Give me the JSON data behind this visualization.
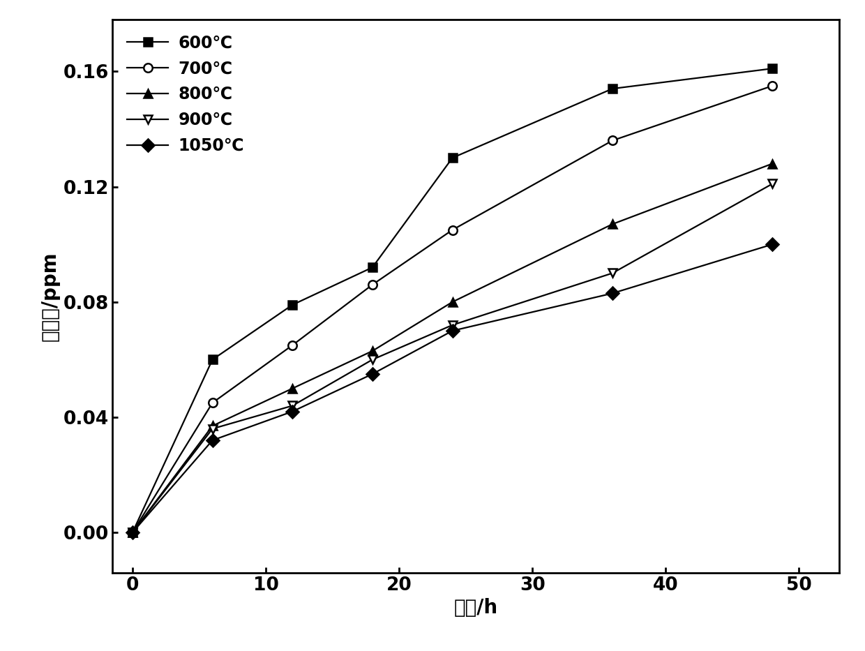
{
  "series": [
    {
      "label": "600℃",
      "x": [
        0,
        6,
        12,
        18,
        24,
        36,
        48
      ],
      "y": [
        0.0,
        0.06,
        0.079,
        0.092,
        0.13,
        0.154,
        0.161
      ],
      "marker": "s",
      "marker_filled": true
    },
    {
      "label": "700℃",
      "x": [
        0,
        6,
        12,
        18,
        24,
        36,
        48
      ],
      "y": [
        0.0,
        0.045,
        0.065,
        0.086,
        0.105,
        0.136,
        0.155
      ],
      "marker": "o",
      "marker_filled": false
    },
    {
      "label": "800℃",
      "x": [
        0,
        6,
        12,
        18,
        24,
        36,
        48
      ],
      "y": [
        0.0,
        0.037,
        0.05,
        0.063,
        0.08,
        0.107,
        0.128
      ],
      "marker": "^",
      "marker_filled": true
    },
    {
      "label": "900℃",
      "x": [
        0,
        6,
        12,
        18,
        24,
        36,
        48
      ],
      "y": [
        0.0,
        0.036,
        0.044,
        0.06,
        0.072,
        0.09,
        0.121
      ],
      "marker": "v",
      "marker_filled": false
    },
    {
      "label": "1050℃",
      "x": [
        0,
        6,
        12,
        18,
        24,
        36,
        48
      ],
      "y": [
        0.0,
        0.032,
        0.042,
        0.055,
        0.07,
        0.083,
        0.1
      ],
      "marker": "D",
      "marker_filled": true
    }
  ],
  "xlabel": "时间/h",
  "ylabel": "含硒量/ppm",
  "xlim": [
    -1.5,
    53
  ],
  "ylim": [
    -0.014,
    0.178
  ],
  "xticks": [
    0,
    10,
    20,
    30,
    40,
    50
  ],
  "yticks": [
    0.0,
    0.04,
    0.08,
    0.12,
    0.16
  ],
  "line_color": "#000000",
  "marker_size": 9,
  "line_width": 1.6,
  "legend_fontsize": 17,
  "axis_label_fontsize": 20,
  "tick_fontsize": 19
}
